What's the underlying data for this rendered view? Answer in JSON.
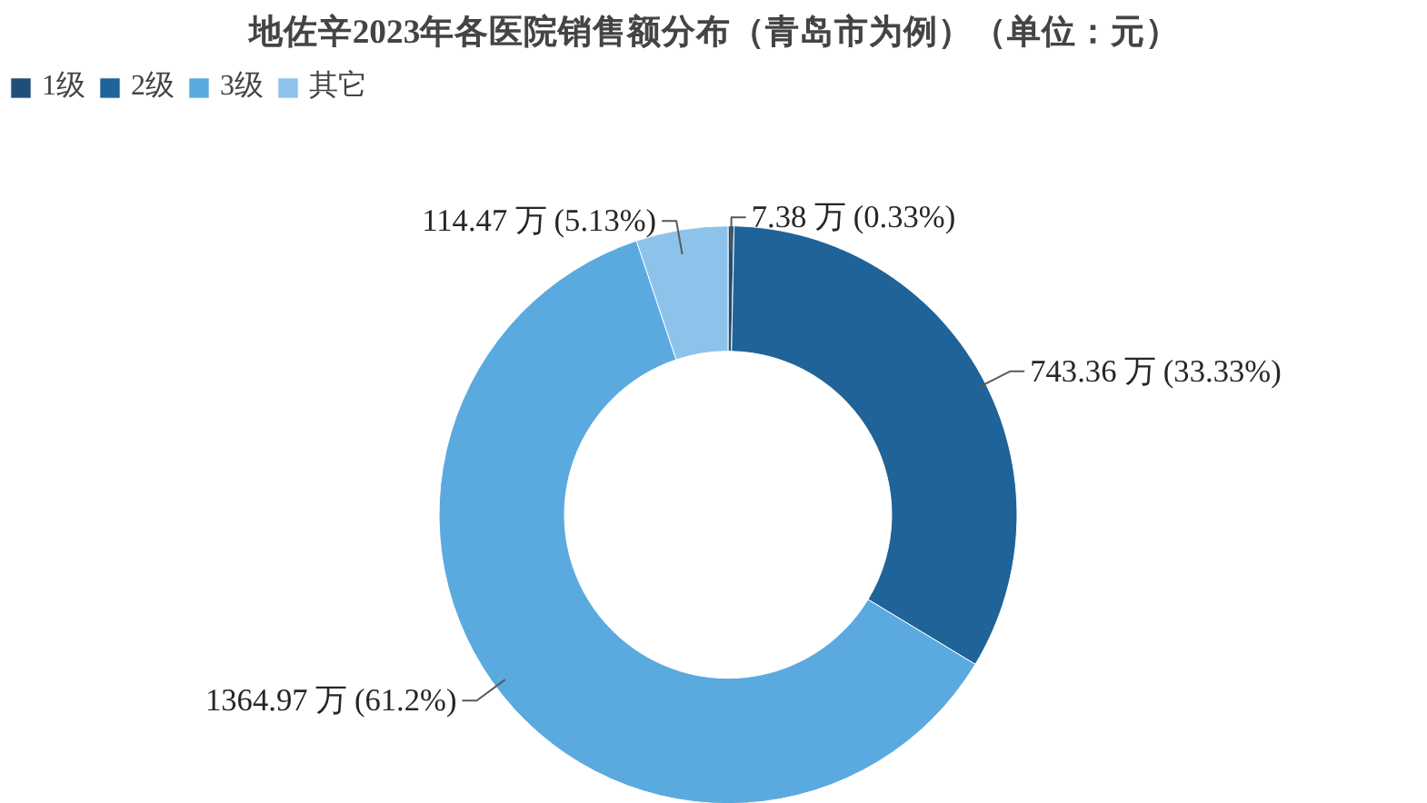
{
  "chart_data": {
    "type": "donut",
    "title": "地佐辛2023年各医院销售额分布（青岛市为例）（单位：元）",
    "categories": [
      "1级",
      "2级",
      "3级",
      "其它"
    ],
    "values": [
      7.38,
      743.36,
      1364.97,
      114.47
    ],
    "colors": [
      "#1f4e79",
      "#1f6398",
      "#5aaae0",
      "#8dc3ea"
    ],
    "value_labels": [
      "7.38 万 (0.33%)",
      "743.36 万 (33.33%)",
      "1364.97 万 (61.2%)",
      "114.47 万 (5.13%)"
    ],
    "legend": "top left"
  }
}
